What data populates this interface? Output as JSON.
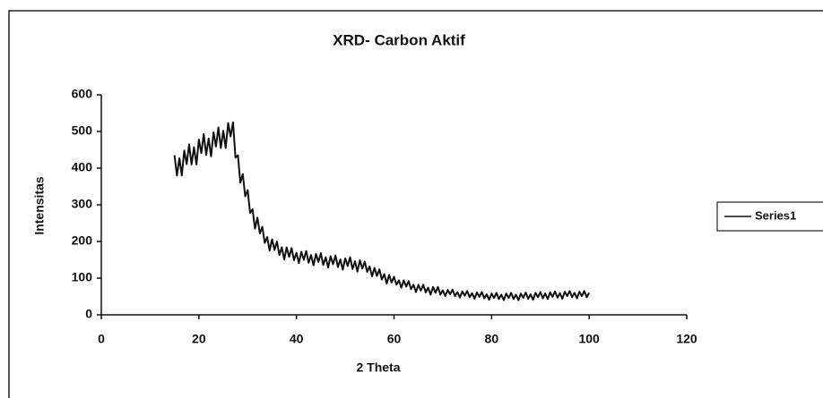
{
  "chart_data": {
    "type": "line",
    "title": "XRD- Carbon Aktif",
    "x_label": "2 Theta",
    "y_label": "Intensitas",
    "xlim": [
      0,
      120
    ],
    "xticks": [
      0,
      20,
      40,
      60,
      80,
      100,
      120
    ],
    "ylim": [
      0,
      600
    ],
    "yticks": [
      0,
      100,
      200,
      300,
      400,
      500,
      600
    ],
    "grid": false,
    "legend": "right",
    "x": [
      15,
      15.5,
      16,
      16.5,
      17,
      17.5,
      18,
      18.5,
      19,
      19.5,
      20,
      20.5,
      21,
      21.5,
      22,
      22.5,
      23,
      23.5,
      24,
      24.5,
      25,
      25.5,
      26,
      26.5,
      27,
      27.5,
      28,
      28.5,
      29,
      29.5,
      30,
      30.5,
      31,
      31.5,
      32,
      32.5,
      33,
      33.5,
      34,
      34.5,
      35,
      35.5,
      36,
      36.5,
      37,
      37.5,
      38,
      38.5,
      39,
      39.5,
      40,
      40.5,
      41,
      41.5,
      42,
      42.5,
      43,
      43.5,
      44,
      44.5,
      45,
      45.5,
      46,
      46.5,
      47,
      47.5,
      48,
      48.5,
      49,
      49.5,
      50,
      50.5,
      51,
      51.5,
      52,
      52.5,
      53,
      53.5,
      54,
      54.5,
      55,
      55.5,
      56,
      56.5,
      57,
      57.5,
      58,
      58.5,
      59,
      59.5,
      60,
      60.5,
      61,
      61.5,
      62,
      62.5,
      63,
      63.5,
      64,
      64.5,
      65,
      65.5,
      66,
      66.5,
      67,
      67.5,
      68,
      68.5,
      69,
      69.5,
      70,
      70.5,
      71,
      71.5,
      72,
      72.5,
      73,
      73.5,
      74,
      74.5,
      75,
      75.5,
      76,
      76.5,
      77,
      77.5,
      78,
      78.5,
      79,
      79.5,
      80,
      80.5,
      81,
      81.5,
      82,
      82.5,
      83,
      83.5,
      84,
      84.5,
      85,
      85.5,
      86,
      86.5,
      87,
      87.5,
      88,
      88.5,
      89,
      89.5,
      90,
      90.5,
      91,
      91.5,
      92,
      92.5,
      93,
      93.5,
      94,
      94.5,
      95,
      95.5,
      96,
      96.5,
      97,
      97.5,
      98,
      98.5,
      99,
      99.5,
      100
    ],
    "series": [
      {
        "name": "Series1",
        "color": "#111111",
        "values": [
          435,
          380,
          427,
          380,
          448,
          411,
          465,
          410,
          457,
          410,
          478,
          441,
          493,
          436,
          481,
          432,
          498,
          459,
          511,
          455,
          502,
          455,
          523,
          486,
          525,
          429,
          435,
          360,
          384,
          323,
          340,
          278,
          288,
          235,
          265,
          222,
          240,
          196,
          212,
          175,
          206,
          177,
          200,
          163,
          184,
          151,
          184,
          158,
          182,
          149,
          169,
          141,
          172,
          150,
          174,
          142,
          163,
          135,
          166,
          144,
          168,
          136,
          157,
          129,
          160,
          138,
          162,
          130,
          151,
          123,
          154,
          133,
          157,
          125,
          146,
          118,
          149,
          126,
          145,
          117,
          132,
          105,
          128,
          106,
          124,
          96,
          111,
          85,
          109,
          88,
          104,
          82,
          94,
          74,
          94,
          77,
          92,
          70,
          82,
          62,
          82,
          66,
          82,
          61,
          74,
          55,
          76,
          60,
          76,
          55,
          67,
          51,
          68,
          56,
          69,
          51,
          62,
          47,
          64,
          52,
          65,
          48,
          59,
          44,
          61,
          49,
          62,
          45,
          56,
          41,
          58,
          46,
          60,
          43,
          55,
          40,
          58,
          46,
          60,
          43,
          55,
          40,
          58,
          46,
          61,
          44,
          56,
          41,
          60,
          48,
          62,
          45,
          58,
          43,
          61,
          49,
          64,
          47,
          59,
          44,
          63,
          51,
          65,
          48,
          60,
          45,
          63,
          51,
          65,
          48,
          60
        ]
      }
    ]
  }
}
